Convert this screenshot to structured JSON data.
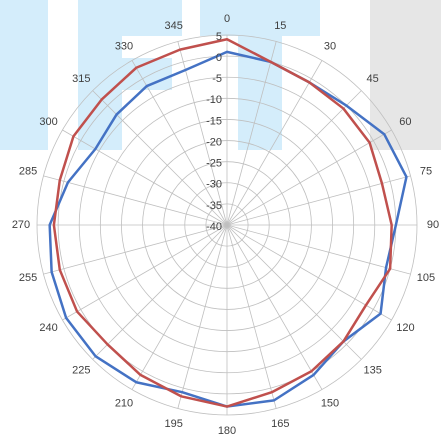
{
  "chart_data": {
    "type": "polar",
    "theta": [
      0,
      15,
      30,
      45,
      60,
      75,
      90,
      105,
      120,
      135,
      150,
      165,
      180,
      195,
      210,
      225,
      240,
      255,
      270,
      285,
      300,
      315,
      330,
      345
    ],
    "rlim": [
      -40,
      5
    ],
    "rticks": [
      -40,
      -35,
      -30,
      -25,
      -20,
      -15,
      -10,
      -5,
      0,
      5
    ],
    "grid": true,
    "series": [
      {
        "color": "#4472c4",
        "values": [
          1,
          0,
          -1,
          0,
          3,
          4,
          0,
          -1,
          2,
          -1,
          1,
          3,
          3,
          1,
          3,
          4,
          4,
          3,
          2,
          -1,
          -4,
          -3,
          -2,
          -2
        ]
      },
      {
        "color": "#c0504d",
        "values": [
          4,
          0,
          -1,
          -1,
          -1,
          -2,
          -1,
          0,
          -2,
          -1,
          0,
          1,
          3,
          2,
          1,
          0,
          1,
          1,
          1,
          1,
          2,
          2,
          3,
          3
        ]
      }
    ]
  }
}
